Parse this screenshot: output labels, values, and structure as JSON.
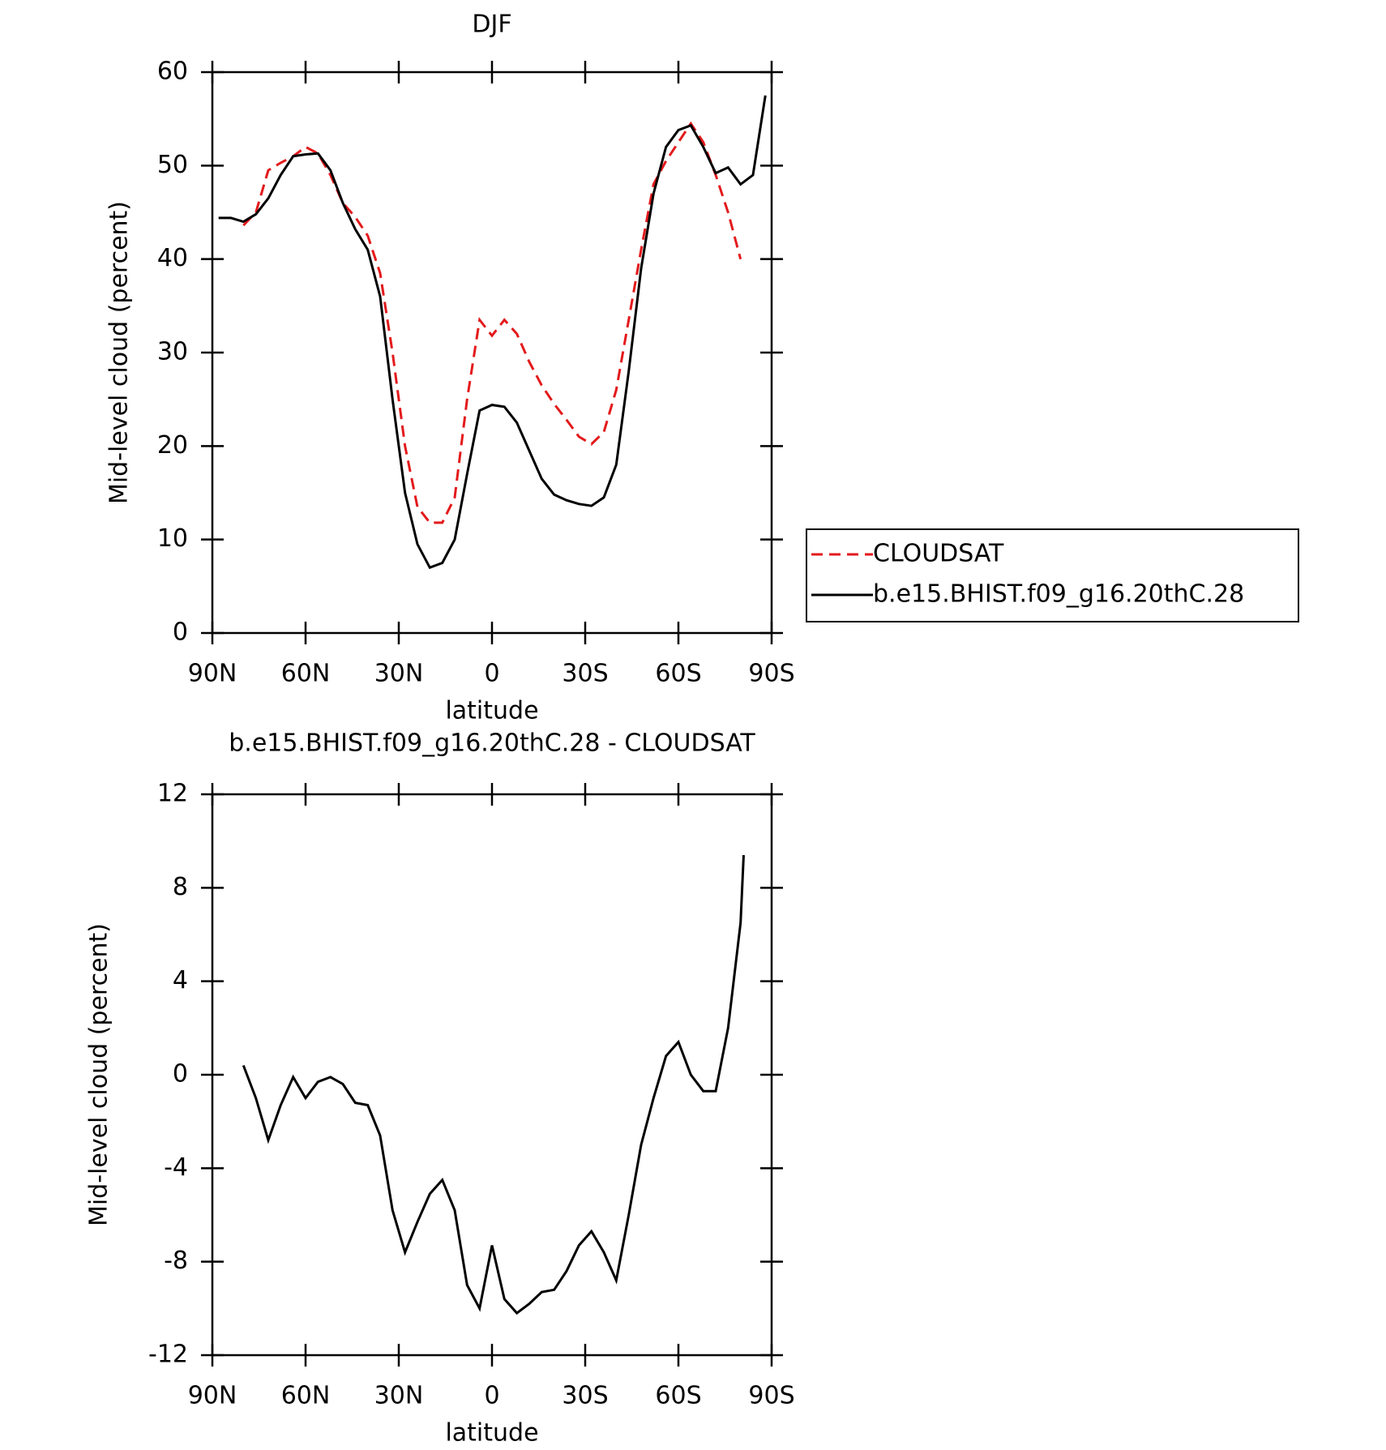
{
  "chart_data": [
    {
      "type": "line",
      "title": "DJF",
      "xlabel": "latitude",
      "ylabel": "Mid-level cloud (percent)",
      "x": [
        88,
        84,
        80,
        76,
        72,
        68,
        64,
        60,
        56,
        52,
        48,
        44,
        40,
        36,
        32,
        28,
        24,
        20,
        16,
        12,
        8,
        4,
        0,
        -4,
        -8,
        -12,
        -16,
        -20,
        -24,
        -28,
        -32,
        -36,
        -40,
        -44,
        -48,
        -52,
        -56,
        -60,
        -64,
        -68,
        -72,
        -76,
        -80,
        -84,
        -88
      ],
      "series": [
        {
          "name": "CLOUDSAT",
          "color": "#e31a1c",
          "dash": true,
          "values": [
            null,
            null,
            43.6,
            45,
            49.5,
            50.3,
            51,
            52,
            51.3,
            49,
            46,
            44.5,
            42.5,
            38.5,
            30,
            20,
            13.5,
            11.8,
            11.8,
            14.5,
            25,
            33.5,
            31.8,
            33.5,
            32,
            29,
            26.5,
            24.5,
            22.8,
            21,
            20.2,
            21.5,
            26,
            33.5,
            41,
            48,
            50.5,
            52.5,
            54.5,
            52.5,
            49,
            45,
            40,
            null,
            null
          ]
        },
        {
          "name": "b.e15.BHIST.f09_g16.20thC.28",
          "color": "#000000",
          "dash": false,
          "values": [
            44.4,
            44.4,
            44,
            44.8,
            46.5,
            49,
            51,
            51.2,
            51.3,
            49.5,
            46,
            43.2,
            41,
            36,
            25,
            15,
            9.5,
            7,
            7.5,
            10,
            17,
            23.8,
            24.4,
            24.2,
            22.5,
            19.5,
            16.5,
            14.8,
            14.2,
            13.8,
            13.6,
            14.5,
            18,
            28,
            39,
            47,
            52,
            53.8,
            54.3,
            52,
            49.2,
            49.8,
            48,
            49,
            57.5
          ]
        }
      ],
      "xlim": [
        90,
        -90
      ],
      "xticks": [
        {
          "value": 90,
          "label": "90N"
        },
        {
          "value": 60,
          "label": "60N"
        },
        {
          "value": 30,
          "label": "30N"
        },
        0,
        {
          "value": -30,
          "label": "30S"
        },
        {
          "value": -60,
          "label": "60S"
        },
        {
          "value": -90,
          "label": "90S"
        }
      ],
      "ylim": [
        0,
        60
      ],
      "yticks": [
        0,
        10,
        20,
        30,
        40,
        50,
        60
      ],
      "legend": "right"
    },
    {
      "type": "line",
      "title": "b.e15.BHIST.f09_g16.20thC.28 - CLOUDSAT",
      "xlabel": "latitude",
      "ylabel": "Mid-level cloud (percent)",
      "x": [
        80,
        76,
        72,
        68,
        64,
        60,
        56,
        52,
        48,
        44,
        40,
        36,
        32,
        28,
        24,
        20,
        16,
        12,
        8,
        4,
        0,
        -4,
        -8,
        -12,
        -16,
        -20,
        -24,
        -28,
        -32,
        -36,
        -40,
        -44,
        -48,
        -52,
        -56,
        -60,
        -64,
        -68,
        -72,
        -76,
        -80,
        -81
      ],
      "series": [
        {
          "color": "#000000",
          "dash": false,
          "values": [
            0.4,
            -1,
            -2.8,
            -1.3,
            -0.1,
            -1,
            -0.3,
            -0.1,
            -0.4,
            -1.2,
            -1.3,
            -2.6,
            -5.8,
            -7.6,
            -6.3,
            -5.1,
            -4.5,
            -5.8,
            -9,
            -10,
            -7.3,
            -9.6,
            -10.2,
            -9.8,
            -9.3,
            -9.2,
            -8.4,
            -7.3,
            -6.7,
            -7.6,
            -8.8,
            -6,
            -3,
            -1,
            0.8,
            1.4,
            0,
            -0.7,
            -0.7,
            2,
            6.5,
            9.4
          ]
        }
      ],
      "xlim": [
        90,
        -90
      ],
      "xticks": [
        {
          "value": 90,
          "label": "90N"
        },
        {
          "value": 60,
          "label": "60N"
        },
        {
          "value": 30,
          "label": "30N"
        },
        0,
        {
          "value": -30,
          "label": "30S"
        },
        {
          "value": -60,
          "label": "60S"
        },
        {
          "value": -90,
          "label": "90S"
        }
      ],
      "ylim": [
        -12,
        12
      ],
      "yticks": [
        -12,
        -8,
        -4,
        0,
        4,
        8,
        12
      ]
    }
  ]
}
